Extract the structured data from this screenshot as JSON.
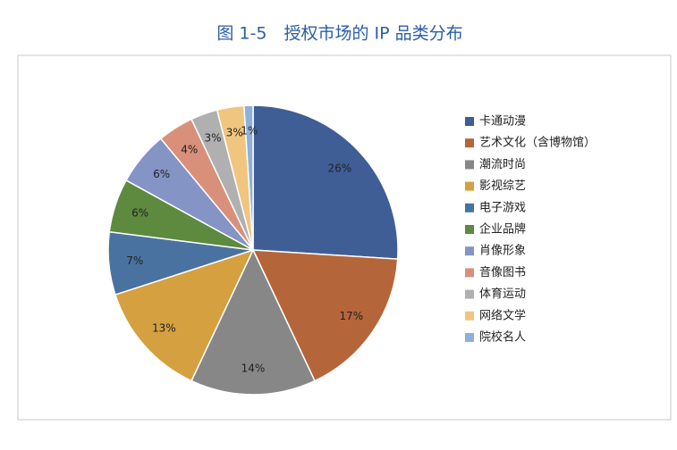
{
  "chart_data": {
    "type": "pie",
    "title": "图 1-5　授权市场的 IP 品类分布",
    "categories": [
      "卡通动漫",
      "艺术文化（含博物馆）",
      "潮流时尚",
      "影视综艺",
      "电子游戏",
      "企业品牌",
      "肖像形象",
      "音像图书",
      "体育运动",
      "网络文学",
      "院校名人"
    ],
    "values": [
      26,
      17,
      14,
      13,
      7,
      6,
      6,
      4,
      3,
      3,
      1
    ],
    "value_labels": [
      "26%",
      "17%",
      "14%",
      "13%",
      "7%",
      "6%",
      "6%",
      "4%",
      "3%",
      "3%",
      "1%"
    ],
    "colors": [
      "#3f5e96",
      "#b5653a",
      "#878787",
      "#d4a040",
      "#4a72a0",
      "#5d8a3e",
      "#8494c4",
      "#d9907a",
      "#b0b0b0",
      "#f0c580",
      "#8fb0d8"
    ],
    "legend": "right"
  }
}
